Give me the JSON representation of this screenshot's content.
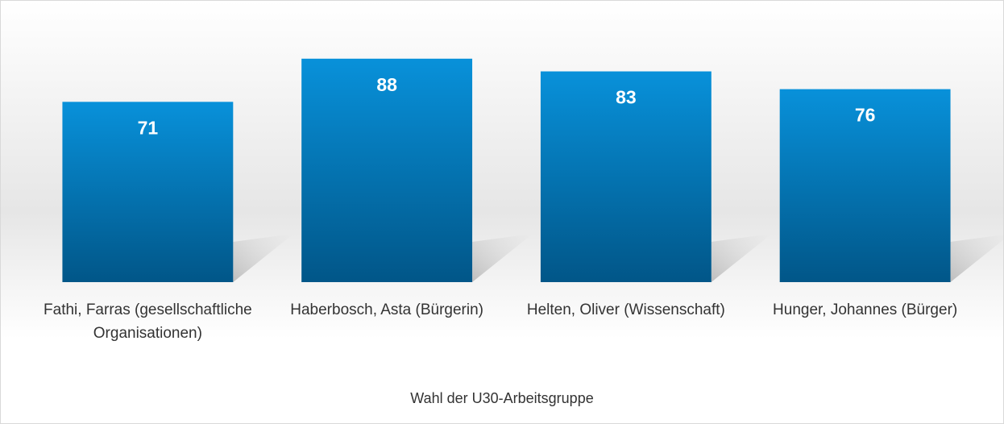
{
  "chart_data": {
    "type": "bar",
    "title": "Wahl der U30-Arbeitsgruppe",
    "categories": [
      "Fathi, Farras (gesellschaftliche Organisationen)",
      "Haberbosch, Asta (Bürgerin)",
      "Helten, Oliver (Wissenschaft)",
      "Hunger, Johannes (Bürger)"
    ],
    "values": [
      71,
      88,
      83,
      76
    ],
    "color": "#0891da",
    "ylim": [
      0,
      100
    ]
  }
}
